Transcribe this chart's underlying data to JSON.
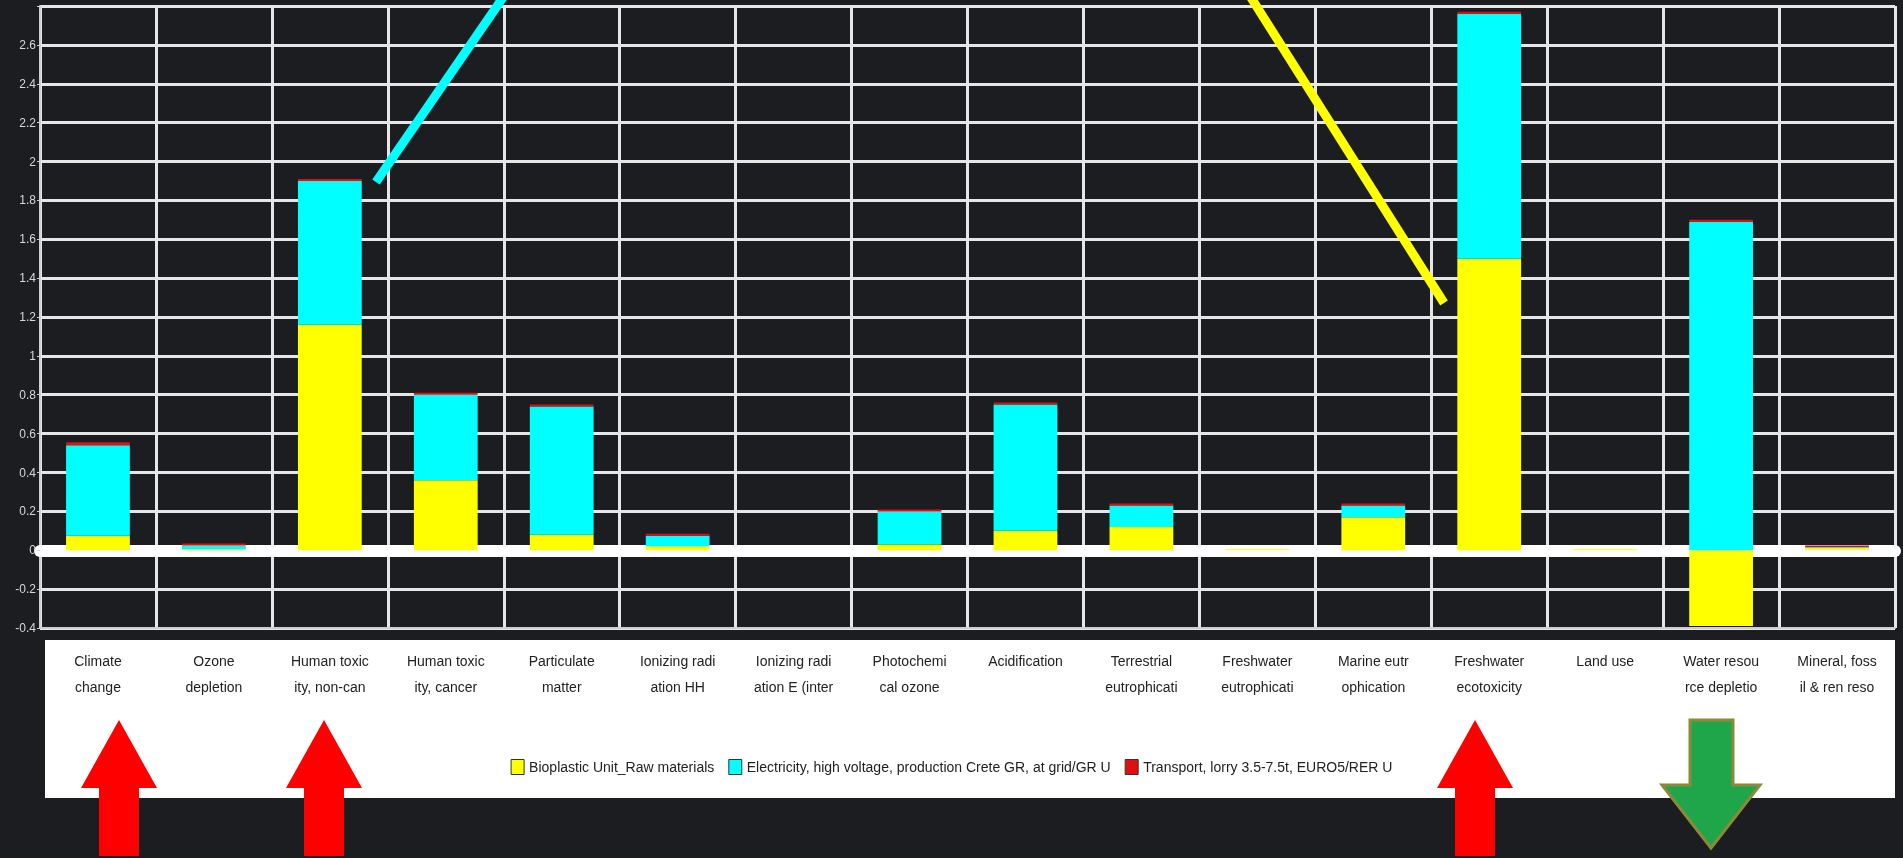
{
  "chart_data": {
    "type": "bar",
    "stacked": true,
    "categories": [
      "Climate\nchange",
      "Ozone\ndepletion",
      "Human toxic\nity, non-can",
      "Human toxic\nity, cancer",
      "Particulate\nmatter",
      "Ionizing radi\nation HH",
      "Ionizing radi\nation E (inter",
      "Photochemi\ncal ozone",
      "Acidification",
      "Terrestrial\neutrophicati",
      "Freshwater\neutrophicati",
      "Marine eutr\nophication",
      "Freshwater\necotoxicity",
      "Land use",
      "Water resou\nrce depletio",
      "Mineral, foss\nil & ren reso"
    ],
    "series": [
      {
        "name": "Bioplastic Unit_Raw materials",
        "color": "#ffff00",
        "values": [
          0.075,
          0.005,
          1.16,
          0.36,
          0.08,
          0.02,
          null,
          0.03,
          0.1,
          0.12,
          0.005,
          0.17,
          1.5,
          0.005,
          -0.39,
          0.01
        ]
      },
      {
        "name": "Electricity, high voltage, production Crete GR, at grid/GR U",
        "color": "#00ffff",
        "values": [
          0.465,
          0.02,
          0.74,
          0.44,
          0.66,
          0.055,
          null,
          0.17,
          0.65,
          0.11,
          null,
          0.06,
          1.26,
          null,
          1.69,
          0.005
        ]
      },
      {
        "name": "Transport, lorry 3.5-7.5t, EURO5/RER U",
        "color": "#e01010",
        "values": [
          0.015,
          0.01,
          0.01,
          0.01,
          0.01,
          0.01,
          null,
          0.01,
          0.01,
          0.01,
          null,
          0.01,
          0.01,
          null,
          0.01,
          0.01
        ]
      }
    ],
    "ylim": [
      -0.4,
      2.8
    ],
    "yticks": [
      -0.4,
      -0.2,
      0,
      0.2,
      0.4,
      0.6,
      0.8,
      1,
      1.2,
      1.4,
      1.6,
      1.8,
      2,
      2.2,
      2.4,
      2.6
    ],
    "grid": true,
    "legend": "bottom"
  }
}
